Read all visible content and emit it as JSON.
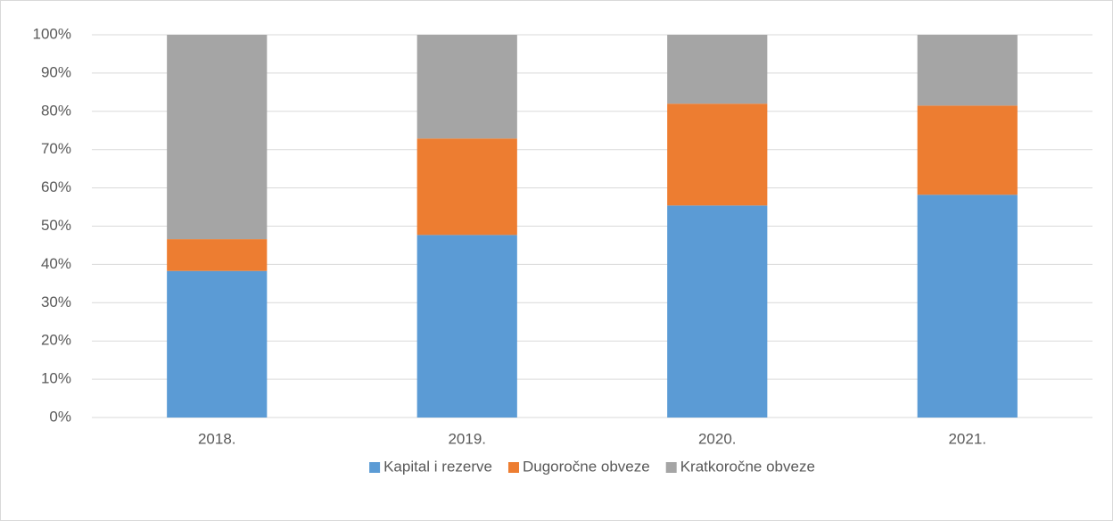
{
  "chart_data": {
    "type": "stacked_bar",
    "categories": [
      "2018.",
      "2019.",
      "2020.",
      "2021."
    ],
    "series": [
      {
        "name": "Kapital i rezerve",
        "color": "#5b9bd5",
        "values": [
          38.3,
          47.7,
          55.4,
          58.2
        ]
      },
      {
        "name": "Dugoročne obveze",
        "color": "#ed7d31",
        "values": [
          8.3,
          25.2,
          26.6,
          23.3
        ]
      },
      {
        "name": "Kratkoročne obveze",
        "color": "#a5a5a5",
        "values": [
          53.4,
          27.1,
          18.0,
          18.5
        ]
      }
    ],
    "ylim": [
      0,
      100
    ],
    "yticks": [
      {
        "value": 0,
        "label": "0%"
      },
      {
        "value": 10,
        "label": "10%"
      },
      {
        "value": 20,
        "label": "20%"
      },
      {
        "value": 30,
        "label": "30%"
      },
      {
        "value": 40,
        "label": "40%"
      },
      {
        "value": 50,
        "label": "50%"
      },
      {
        "value": 60,
        "label": "60%"
      },
      {
        "value": 70,
        "label": "70%"
      },
      {
        "value": 80,
        "label": "80%"
      },
      {
        "value": 90,
        "label": "90%"
      },
      {
        "value": 100,
        "label": "100%"
      }
    ],
    "grid": true,
    "legend": "bottom"
  }
}
